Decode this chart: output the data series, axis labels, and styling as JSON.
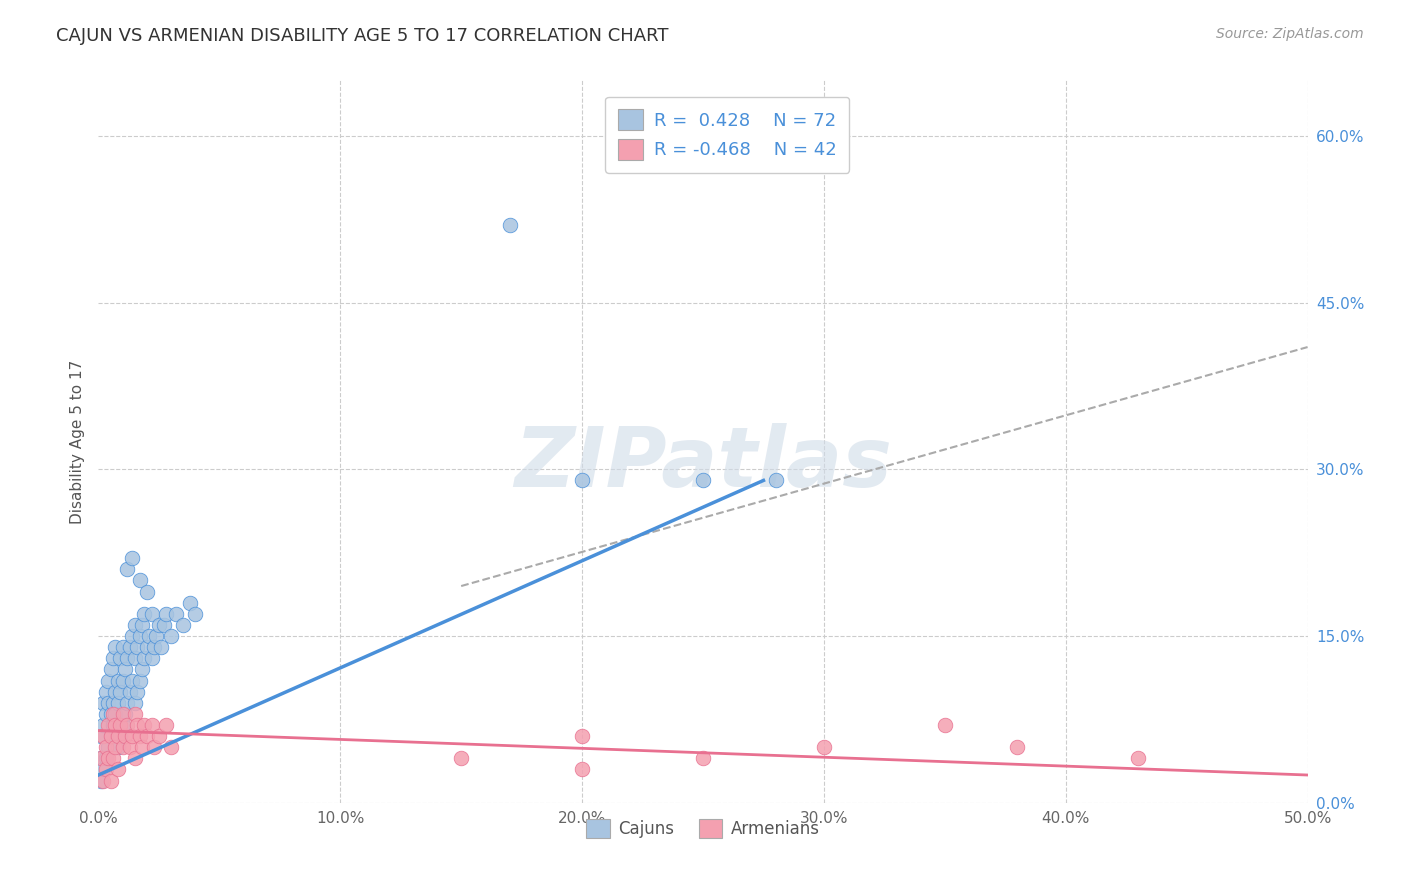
{
  "title": "CAJUN VS ARMENIAN DISABILITY AGE 5 TO 17 CORRELATION CHART",
  "source": "Source: ZipAtlas.com",
  "ylabel": "Disability Age 5 to 17",
  "xlim": [
    0.0,
    0.5
  ],
  "ylim": [
    0.0,
    0.65
  ],
  "xticks": [
    0.0,
    0.1,
    0.2,
    0.3,
    0.4,
    0.5
  ],
  "xtick_labels": [
    "0.0%",
    "10.0%",
    "20.0%",
    "30.0%",
    "40.0%",
    "50.0%"
  ],
  "yticks_right": [
    0.0,
    0.15,
    0.3,
    0.45,
    0.6
  ],
  "ytick_labels_right": [
    "0.0%",
    "15.0%",
    "30.0%",
    "45.0%",
    "60.0%"
  ],
  "cajun_color": "#a8c4e0",
  "armenian_color": "#f4a0b0",
  "cajun_line_color": "#4a90d9",
  "armenian_line_color": "#e87090",
  "dashed_line_color": "#aaaaaa",
  "cajun_R": 0.428,
  "cajun_N": 72,
  "armenian_R": -0.468,
  "armenian_N": 42,
  "watermark": "ZIPatlas",
  "watermark_color": "#d0dce8",
  "background_color": "#ffffff",
  "cajun_scatter": [
    [
      0.001,
      0.02
    ],
    [
      0.001,
      0.04
    ],
    [
      0.001,
      0.06
    ],
    [
      0.002,
      0.03
    ],
    [
      0.002,
      0.07
    ],
    [
      0.002,
      0.09
    ],
    [
      0.003,
      0.04
    ],
    [
      0.003,
      0.08
    ],
    [
      0.003,
      0.1
    ],
    [
      0.004,
      0.05
    ],
    [
      0.004,
      0.09
    ],
    [
      0.004,
      0.11
    ],
    [
      0.005,
      0.06
    ],
    [
      0.005,
      0.08
    ],
    [
      0.005,
      0.12
    ],
    [
      0.006,
      0.07
    ],
    [
      0.006,
      0.09
    ],
    [
      0.006,
      0.13
    ],
    [
      0.007,
      0.08
    ],
    [
      0.007,
      0.1
    ],
    [
      0.007,
      0.14
    ],
    [
      0.008,
      0.05
    ],
    [
      0.008,
      0.09
    ],
    [
      0.008,
      0.11
    ],
    [
      0.009,
      0.06
    ],
    [
      0.009,
      0.1
    ],
    [
      0.009,
      0.13
    ],
    [
      0.01,
      0.07
    ],
    [
      0.01,
      0.11
    ],
    [
      0.01,
      0.14
    ],
    [
      0.011,
      0.08
    ],
    [
      0.011,
      0.12
    ],
    [
      0.012,
      0.09
    ],
    [
      0.012,
      0.13
    ],
    [
      0.013,
      0.1
    ],
    [
      0.013,
      0.14
    ],
    [
      0.014,
      0.11
    ],
    [
      0.014,
      0.15
    ],
    [
      0.015,
      0.09
    ],
    [
      0.015,
      0.13
    ],
    [
      0.015,
      0.16
    ],
    [
      0.016,
      0.1
    ],
    [
      0.016,
      0.14
    ],
    [
      0.017,
      0.11
    ],
    [
      0.017,
      0.15
    ],
    [
      0.018,
      0.12
    ],
    [
      0.018,
      0.16
    ],
    [
      0.019,
      0.13
    ],
    [
      0.019,
      0.17
    ],
    [
      0.02,
      0.14
    ],
    [
      0.021,
      0.15
    ],
    [
      0.022,
      0.13
    ],
    [
      0.022,
      0.17
    ],
    [
      0.023,
      0.14
    ],
    [
      0.024,
      0.15
    ],
    [
      0.025,
      0.16
    ],
    [
      0.026,
      0.14
    ],
    [
      0.027,
      0.16
    ],
    [
      0.028,
      0.17
    ],
    [
      0.03,
      0.15
    ],
    [
      0.032,
      0.17
    ],
    [
      0.035,
      0.16
    ],
    [
      0.038,
      0.18
    ],
    [
      0.04,
      0.17
    ],
    [
      0.012,
      0.21
    ],
    [
      0.014,
      0.22
    ],
    [
      0.017,
      0.2
    ],
    [
      0.02,
      0.19
    ],
    [
      0.17,
      0.52
    ],
    [
      0.2,
      0.29
    ],
    [
      0.25,
      0.29
    ],
    [
      0.28,
      0.29
    ]
  ],
  "armenian_scatter": [
    [
      0.001,
      0.04
    ],
    [
      0.002,
      0.06
    ],
    [
      0.002,
      0.02
    ],
    [
      0.003,
      0.05
    ],
    [
      0.003,
      0.03
    ],
    [
      0.004,
      0.07
    ],
    [
      0.004,
      0.04
    ],
    [
      0.005,
      0.06
    ],
    [
      0.005,
      0.02
    ],
    [
      0.006,
      0.08
    ],
    [
      0.006,
      0.04
    ],
    [
      0.007,
      0.05
    ],
    [
      0.007,
      0.07
    ],
    [
      0.008,
      0.06
    ],
    [
      0.008,
      0.03
    ],
    [
      0.009,
      0.07
    ],
    [
      0.01,
      0.05
    ],
    [
      0.01,
      0.08
    ],
    [
      0.011,
      0.06
    ],
    [
      0.012,
      0.07
    ],
    [
      0.013,
      0.05
    ],
    [
      0.014,
      0.06
    ],
    [
      0.015,
      0.08
    ],
    [
      0.015,
      0.04
    ],
    [
      0.016,
      0.07
    ],
    [
      0.017,
      0.06
    ],
    [
      0.018,
      0.05
    ],
    [
      0.019,
      0.07
    ],
    [
      0.02,
      0.06
    ],
    [
      0.022,
      0.07
    ],
    [
      0.023,
      0.05
    ],
    [
      0.025,
      0.06
    ],
    [
      0.028,
      0.07
    ],
    [
      0.03,
      0.05
    ],
    [
      0.15,
      0.04
    ],
    [
      0.2,
      0.06
    ],
    [
      0.2,
      0.03
    ],
    [
      0.25,
      0.04
    ],
    [
      0.3,
      0.05
    ],
    [
      0.35,
      0.07
    ],
    [
      0.38,
      0.05
    ],
    [
      0.43,
      0.04
    ]
  ],
  "cajun_line_x": [
    0.0,
    0.275
  ],
  "cajun_line_y": [
    0.025,
    0.29
  ],
  "armenian_line_x": [
    0.0,
    0.5
  ],
  "armenian_line_y": [
    0.065,
    0.025
  ],
  "dashed_line_x": [
    0.15,
    0.5
  ],
  "dashed_line_y": [
    0.195,
    0.41
  ]
}
